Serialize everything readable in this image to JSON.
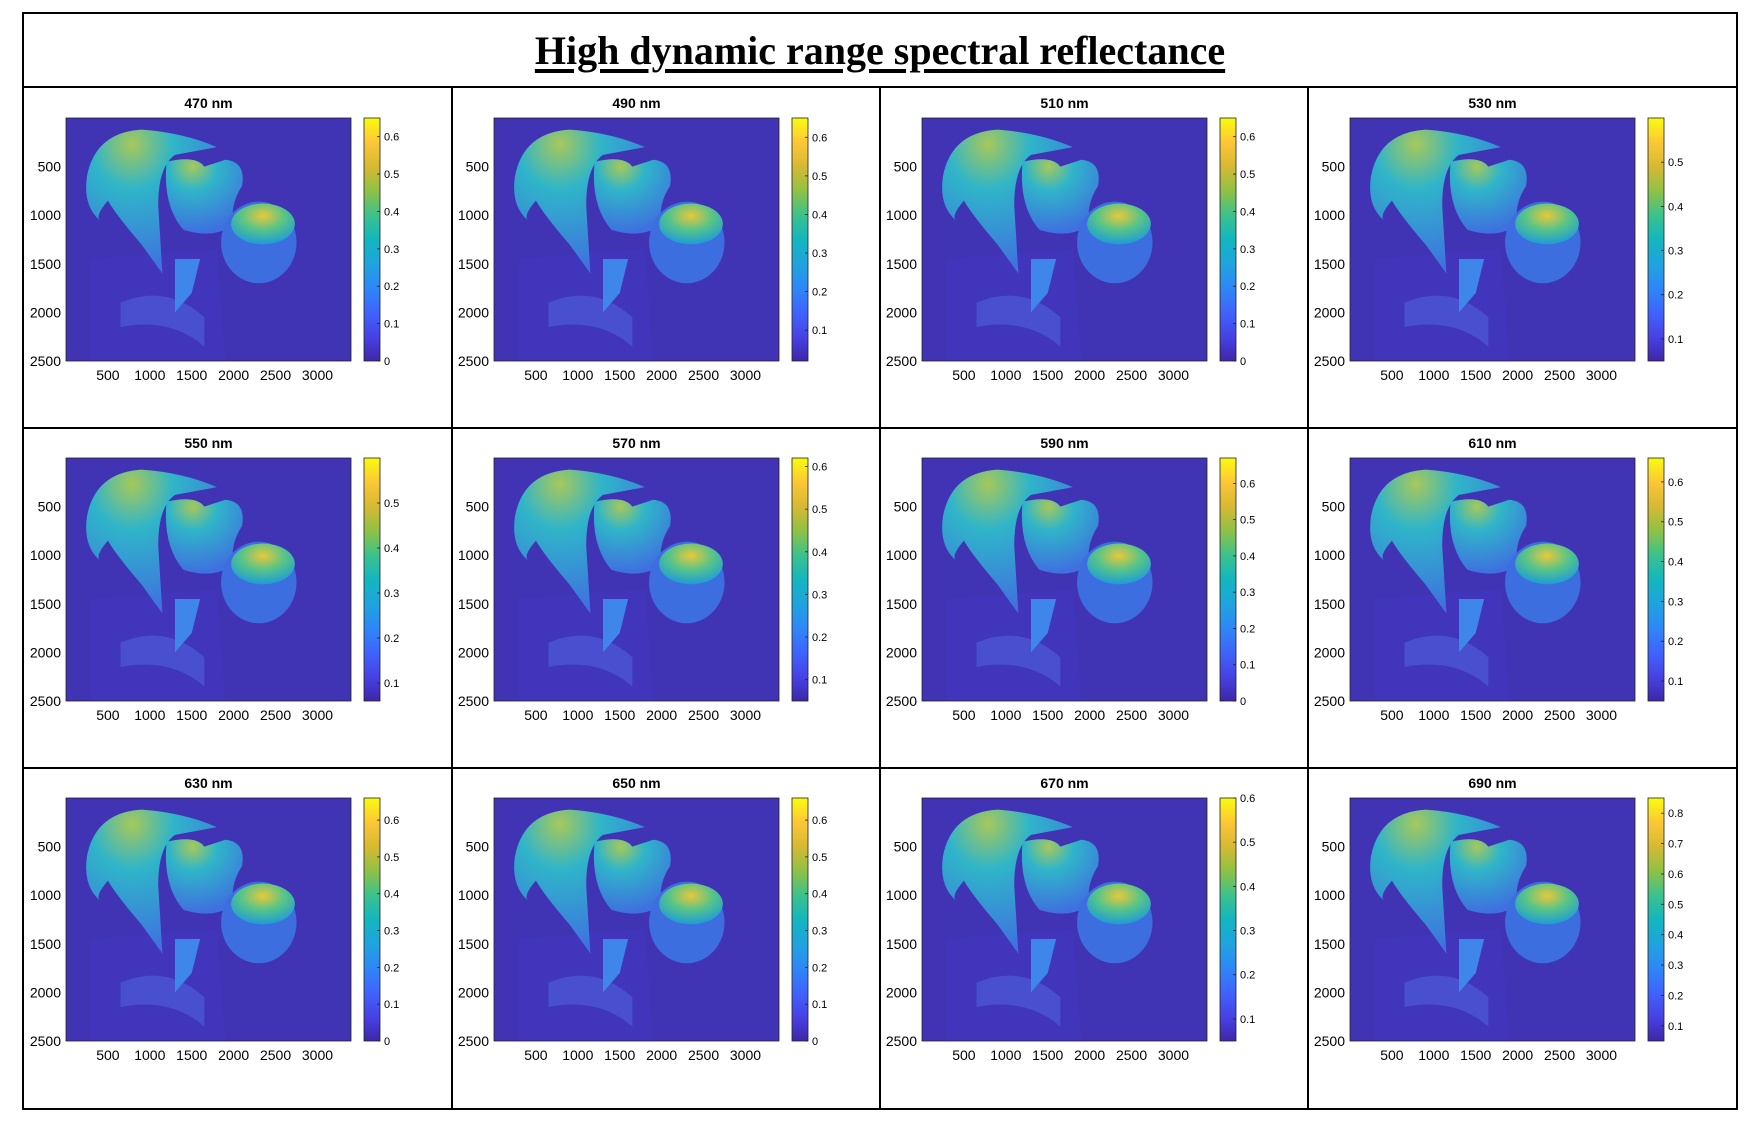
{
  "figure": {
    "title": "High dynamic range spectral reflectance"
  },
  "colormap": "parula",
  "colors": {
    "parula_low": "#3e26a8",
    "parula_mid": "#13b6bf",
    "parula_high": "#f9fb0e",
    "border": "#000000"
  },
  "chart_data": [
    {
      "type": "heatmap",
      "title": "470 nm",
      "x_ticks": [
        "500",
        "1000",
        "1500",
        "2000",
        "2500",
        "3000"
      ],
      "y_ticks": [
        "500",
        "1000",
        "1500",
        "2000",
        "2500"
      ],
      "colorbar_ticks": [
        "0",
        "0.1",
        "0.2",
        "0.3",
        "0.4",
        "0.5",
        "0.6"
      ],
      "clim": [
        0,
        0.65
      ]
    },
    {
      "type": "heatmap",
      "title": "490 nm",
      "x_ticks": [
        "500",
        "1000",
        "1500",
        "2000",
        "2500",
        "3000"
      ],
      "y_ticks": [
        "500",
        "1000",
        "1500",
        "2000",
        "2500"
      ],
      "colorbar_ticks": [
        "0.1",
        "0.2",
        "0.3",
        "0.4",
        "0.5",
        "0.6"
      ],
      "clim": [
        0.02,
        0.65
      ]
    },
    {
      "type": "heatmap",
      "title": "510 nm",
      "x_ticks": [
        "500",
        "1000",
        "1500",
        "2000",
        "2500",
        "3000"
      ],
      "y_ticks": [
        "500",
        "1000",
        "1500",
        "2000",
        "2500"
      ],
      "colorbar_ticks": [
        "0",
        "0.1",
        "0.2",
        "0.3",
        "0.4",
        "0.5",
        "0.6"
      ],
      "clim": [
        0,
        0.65
      ]
    },
    {
      "type": "heatmap",
      "title": "530 nm",
      "x_ticks": [
        "500",
        "1000",
        "1500",
        "2000",
        "2500",
        "3000"
      ],
      "y_ticks": [
        "500",
        "1000",
        "1500",
        "2000",
        "2500"
      ],
      "colorbar_ticks": [
        "0.1",
        "0.2",
        "0.3",
        "0.4",
        "0.5"
      ],
      "clim": [
        0.05,
        0.6
      ]
    },
    {
      "type": "heatmap",
      "title": "550 nm",
      "x_ticks": [
        "500",
        "1000",
        "1500",
        "2000",
        "2500",
        "3000"
      ],
      "y_ticks": [
        "500",
        "1000",
        "1500",
        "2000",
        "2500"
      ],
      "colorbar_ticks": [
        "0.1",
        "0.2",
        "0.3",
        "0.4",
        "0.5"
      ],
      "clim": [
        0.06,
        0.6
      ]
    },
    {
      "type": "heatmap",
      "title": "570 nm",
      "x_ticks": [
        "500",
        "1000",
        "1500",
        "2000",
        "2500",
        "3000"
      ],
      "y_ticks": [
        "500",
        "1000",
        "1500",
        "2000",
        "2500"
      ],
      "colorbar_ticks": [
        "0.1",
        "0.2",
        "0.3",
        "0.4",
        "0.5",
        "0.6"
      ],
      "clim": [
        0.05,
        0.62
      ]
    },
    {
      "type": "heatmap",
      "title": "590 nm",
      "x_ticks": [
        "500",
        "1000",
        "1500",
        "2000",
        "2500",
        "3000"
      ],
      "y_ticks": [
        "500",
        "1000",
        "1500",
        "2000",
        "2500"
      ],
      "colorbar_ticks": [
        "0",
        "0.1",
        "0.2",
        "0.3",
        "0.4",
        "0.5",
        "0.6"
      ],
      "clim": [
        0,
        0.67
      ]
    },
    {
      "type": "heatmap",
      "title": "610 nm",
      "x_ticks": [
        "500",
        "1000",
        "1500",
        "2000",
        "2500",
        "3000"
      ],
      "y_ticks": [
        "500",
        "1000",
        "1500",
        "2000",
        "2500"
      ],
      "colorbar_ticks": [
        "0.1",
        "0.2",
        "0.3",
        "0.4",
        "0.5",
        "0.6"
      ],
      "clim": [
        0.05,
        0.66
      ]
    },
    {
      "type": "heatmap",
      "title": "630 nm",
      "x_ticks": [
        "500",
        "1000",
        "1500",
        "2000",
        "2500",
        "3000"
      ],
      "y_ticks": [
        "500",
        "1000",
        "1500",
        "2000",
        "2500"
      ],
      "colorbar_ticks": [
        "0",
        "0.1",
        "0.2",
        "0.3",
        "0.4",
        "0.5",
        "0.6"
      ],
      "clim": [
        0,
        0.66
      ]
    },
    {
      "type": "heatmap",
      "title": "650 nm",
      "x_ticks": [
        "500",
        "1000",
        "1500",
        "2000",
        "2500",
        "3000"
      ],
      "y_ticks": [
        "500",
        "1000",
        "1500",
        "2000",
        "2500"
      ],
      "colorbar_ticks": [
        "0",
        "0.1",
        "0.2",
        "0.3",
        "0.4",
        "0.5",
        "0.6"
      ],
      "clim": [
        0,
        0.66
      ]
    },
    {
      "type": "heatmap",
      "title": "670 nm",
      "x_ticks": [
        "500",
        "1000",
        "1500",
        "2000",
        "2500",
        "3000"
      ],
      "y_ticks": [
        "500",
        "1000",
        "1500",
        "2000",
        "2500"
      ],
      "colorbar_ticks": [
        "0.1",
        "0.2",
        "0.3",
        "0.4",
        "0.5",
        "0.6"
      ],
      "clim": [
        0.05,
        0.6
      ]
    },
    {
      "type": "heatmap",
      "title": "690 nm",
      "x_ticks": [
        "500",
        "1000",
        "1500",
        "2000",
        "2500",
        "3000"
      ],
      "y_ticks": [
        "500",
        "1000",
        "1500",
        "2000",
        "2500"
      ],
      "colorbar_ticks": [
        "0.1",
        "0.2",
        "0.3",
        "0.4",
        "0.5",
        "0.6",
        "0.7",
        "0.8"
      ],
      "clim": [
        0.05,
        0.85
      ]
    }
  ]
}
